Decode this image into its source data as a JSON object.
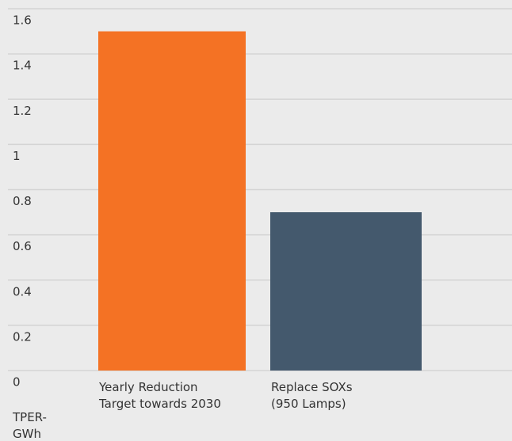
{
  "chart_data": {
    "type": "bar",
    "categories": [
      "Yearly Reduction Target towards 2030",
      "Replace SOXs (950 Lamps)"
    ],
    "values": [
      1.5,
      0.7
    ],
    "colors": [
      "#f47224",
      "#44596d"
    ],
    "y_label": "TPER-GWh",
    "ylim": [
      0,
      1.6
    ],
    "yticks": [
      0,
      0.2,
      0.4,
      0.6,
      0.8,
      1,
      1.2,
      1.4,
      1.6
    ],
    "grid": true
  }
}
